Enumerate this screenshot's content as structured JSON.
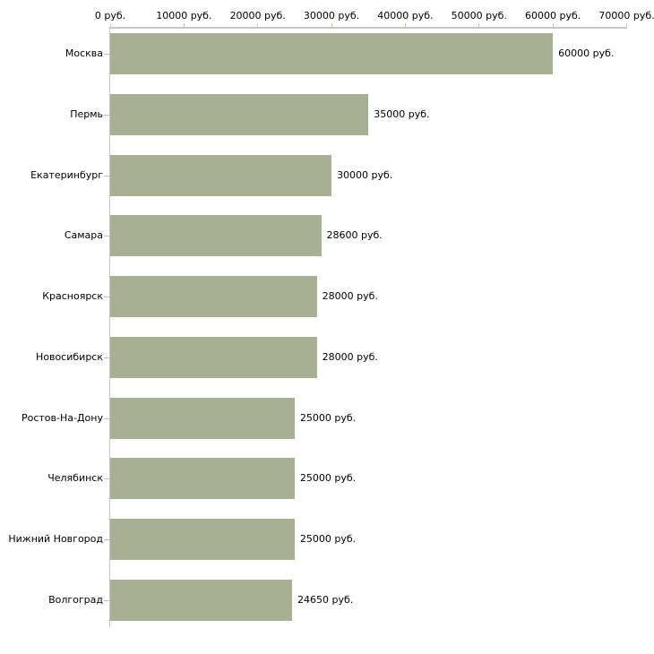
{
  "chart_data": {
    "type": "bar",
    "orientation": "horizontal",
    "title": "",
    "categories": [
      "Москва",
      "Пермь",
      "Екатеринбург",
      "Самара",
      "Красноярск",
      "Новосибирск",
      "Ростов-На-Дону",
      "Челябинск",
      "Нижний Новгород",
      "Волгоград"
    ],
    "values": [
      60000,
      35000,
      30000,
      28600,
      28000,
      28000,
      25000,
      25000,
      25000,
      24650
    ],
    "value_labels": [
      "60000 руб.",
      "35000 руб.",
      "30000 руб.",
      "28600 руб.",
      "28000 руб.",
      "28000 руб.",
      "25000 руб.",
      "25000 руб.",
      "25000 руб.",
      "24650 руб."
    ],
    "unit": "руб.",
    "x_axis": {
      "position": "top",
      "min": 0,
      "max": 70000,
      "tick_step": 10000,
      "tick_labels": [
        "0 руб.",
        "10000 руб.",
        "20000 руб.",
        "30000 руб.",
        "40000 руб.",
        "50000 руб.",
        "60000 руб.",
        "70000 руб."
      ]
    },
    "grid": false,
    "legend": false,
    "colors": {
      "bar": "#a8b094",
      "axis_line": "#c6c6c6",
      "tick": "#cccc99",
      "category_dash": "#c0c0b0",
      "text": "#000000",
      "background": "#ffffff"
    }
  }
}
